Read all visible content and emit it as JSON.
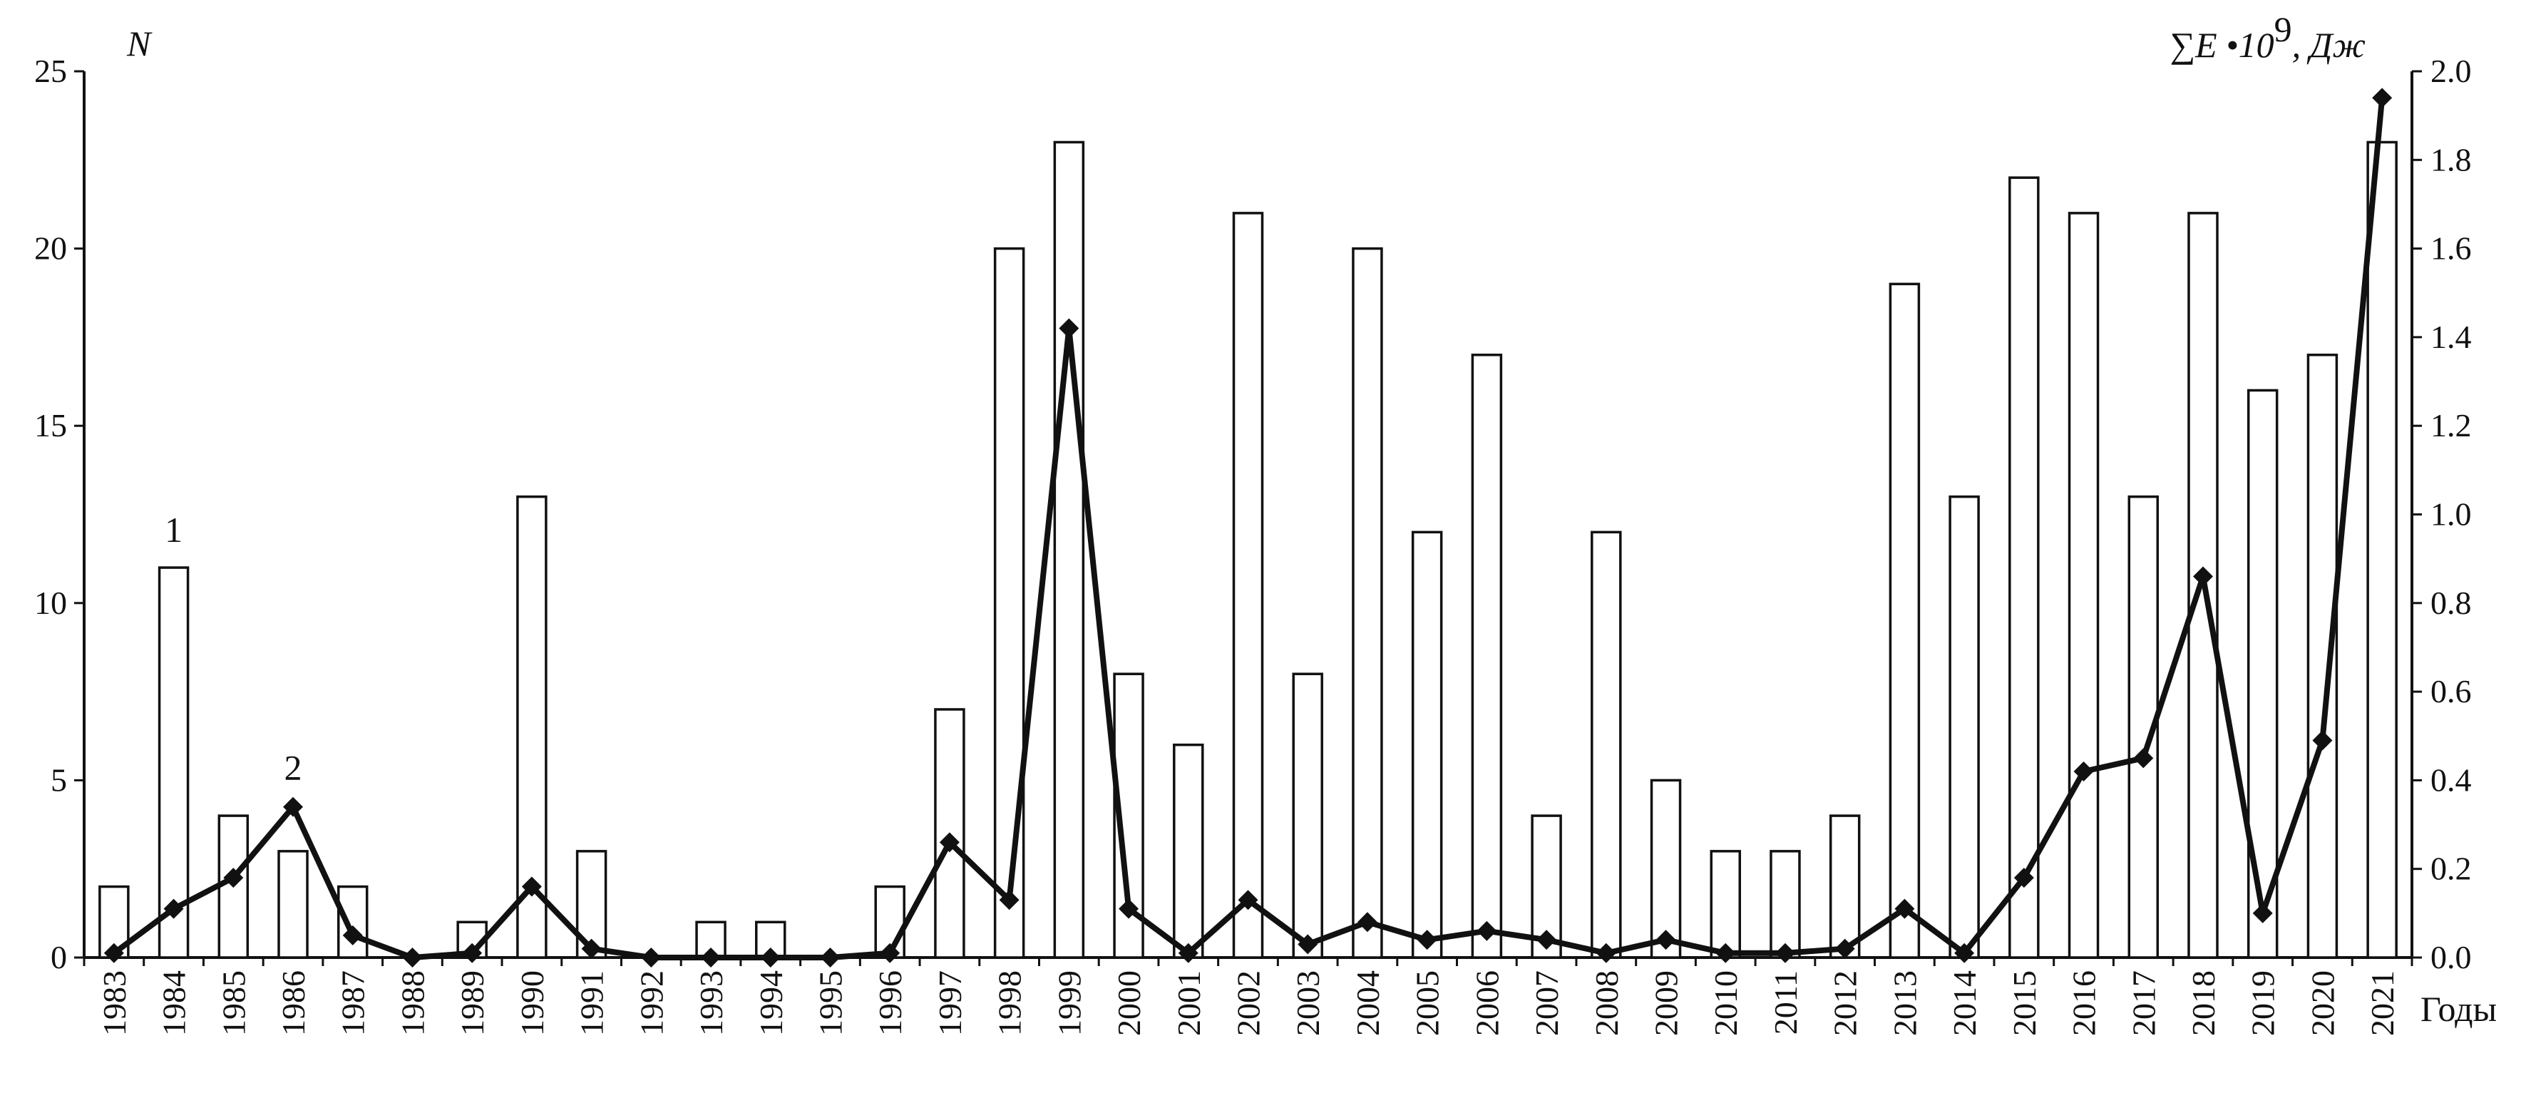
{
  "chart_data": {
    "type": "bar",
    "categories": [
      "1983",
      "1984",
      "1985",
      "1986",
      "1987",
      "1988",
      "1989",
      "1990",
      "1991",
      "1992",
      "1993",
      "1994",
      "1995",
      "1996",
      "1997",
      "1998",
      "1999",
      "2000",
      "2001",
      "2002",
      "2003",
      "2004",
      "2005",
      "2006",
      "2007",
      "2008",
      "2009",
      "2010",
      "2011",
      "2012",
      "2013",
      "2014",
      "2015",
      "2016",
      "2017",
      "2018",
      "2019",
      "2020",
      "2021"
    ],
    "xlabel": "Годы",
    "y_left": {
      "label": "N",
      "range": [
        0,
        25
      ],
      "ticks": [
        "0",
        "5",
        "10",
        "15",
        "20",
        "25"
      ]
    },
    "y_right": {
      "label_main": "∑E •10",
      "label_sup": "9",
      "label_tail": ", Дж",
      "range": [
        0,
        2.0
      ],
      "ticks": [
        "0.0",
        "0.2",
        "0.4",
        "0.6",
        "0.8",
        "1.0",
        "1.2",
        "1.4",
        "1.6",
        "1.8",
        "2.0"
      ]
    },
    "series": [
      {
        "type": "bar",
        "axis": "left",
        "values": [
          2,
          11,
          4,
          3,
          2,
          0,
          1,
          13,
          3,
          0,
          1,
          1,
          0,
          2,
          7,
          20,
          23,
          8,
          6,
          21,
          8,
          20,
          12,
          17,
          4,
          12,
          5,
          3,
          3,
          4,
          19,
          13,
          22,
          21,
          13,
          21,
          16,
          17,
          23
        ]
      },
      {
        "type": "line",
        "axis": "right",
        "marker": "diamond",
        "values": [
          0.01,
          0.11,
          0.18,
          0.34,
          0.05,
          0.0,
          0.01,
          0.16,
          0.02,
          0.0,
          0.0,
          0.0,
          0.0,
          0.01,
          0.26,
          0.13,
          1.42,
          0.11,
          0.01,
          0.13,
          0.03,
          0.08,
          0.04,
          0.06,
          0.04,
          0.01,
          0.04,
          0.01,
          0.01,
          0.02,
          0.11,
          0.01,
          0.18,
          0.42,
          0.45,
          0.86,
          0.1,
          0.49,
          1.94
        ]
      }
    ],
    "annotations": [
      {
        "text": "1",
        "target": "bar",
        "category": "1984"
      },
      {
        "text": "2",
        "target": "line",
        "category": "1986"
      }
    ],
    "grid": false,
    "colors": {
      "ink": "#111111",
      "bar_fill": "#ffffff"
    }
  }
}
